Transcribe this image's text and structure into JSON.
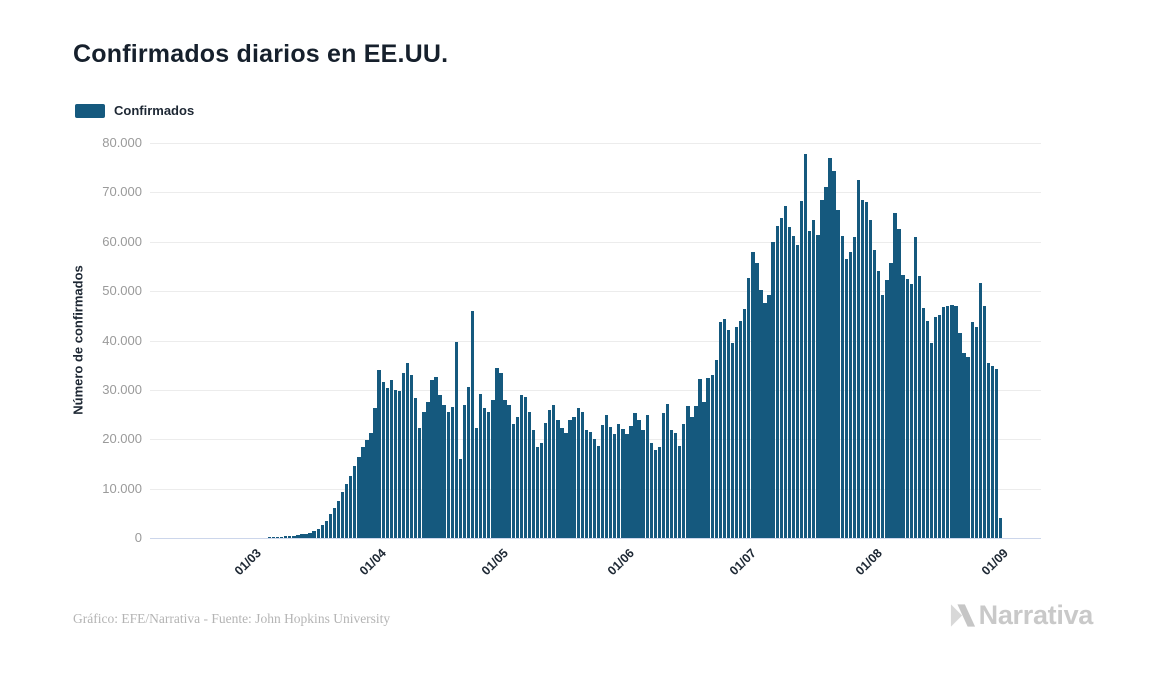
{
  "title": "Confirmados diarios en EE.UU.",
  "legend": {
    "label": "Confirmados",
    "color": "#15597e"
  },
  "y_axis": {
    "title": "Número de confirmados",
    "ticks": [
      "0",
      "10.000",
      "20.000",
      "30.000",
      "40.000",
      "50.000",
      "60.000",
      "70.000",
      "80.000"
    ],
    "tick_values": [
      0,
      10000,
      20000,
      30000,
      40000,
      50000,
      60000,
      70000,
      80000
    ]
  },
  "x_axis": {
    "ticks": [
      "01/03",
      "01/04",
      "01/05",
      "01/06",
      "01/07",
      "01/08",
      "01/09"
    ]
  },
  "footer": {
    "credit": "Gráfico: EFE/Narrativa - Fuente: John Hopkins University",
    "brand": "Narrativa"
  },
  "chart_data": {
    "type": "bar",
    "title": "Confirmados diarios en EE.UU.",
    "xlabel": "",
    "ylabel": "Número de confirmados",
    "ylim": [
      0,
      80000
    ],
    "grid": true,
    "legend_position": "top-left",
    "x_unit": "day",
    "x_start": "2020-02-05",
    "x_end": "2020-09-01",
    "x_tick_labels": [
      "01/03",
      "01/04",
      "01/05",
      "01/06",
      "01/07",
      "01/08",
      "01/09"
    ],
    "x_tick_indices": [
      25,
      56,
      86,
      117,
      147,
      178,
      209
    ],
    "series": [
      {
        "name": "Confirmados",
        "color": "#15597e",
        "values": [
          1,
          0,
          1,
          2,
          2,
          2,
          3,
          2,
          3,
          4,
          3,
          4,
          5,
          4,
          6,
          5,
          8,
          10,
          12,
          14,
          18,
          20,
          22,
          24,
          28,
          35,
          45,
          60,
          80,
          110,
          150,
          200,
          250,
          320,
          400,
          500,
          600,
          750,
          900,
          1100,
          1400,
          1900,
          2600,
          3500,
          4800,
          6100,
          7500,
          9400,
          11000,
          12500,
          14500,
          16500,
          18500,
          19800,
          21300,
          26300,
          34000,
          31500,
          30300,
          32000,
          30000,
          29700,
          33400,
          35400,
          33100,
          28300,
          22300,
          25500,
          27600,
          32000,
          32700,
          29000,
          27000,
          25600,
          26600,
          39700,
          16000,
          27000,
          30500,
          45900,
          22300,
          29200,
          26400,
          25500,
          28000,
          34500,
          33500,
          28000,
          27000,
          23000,
          24600,
          29000,
          28600,
          25600,
          21900,
          18500,
          19300,
          23300,
          26000,
          27000,
          23900,
          22300,
          21300,
          23900,
          24600,
          26400,
          25600,
          21900,
          21500,
          20000,
          18700,
          22900,
          24900,
          22500,
          21000,
          23000,
          22000,
          21000,
          22600,
          25300,
          24000,
          21900,
          25000,
          19200,
          17800,
          18500,
          25300,
          27200,
          21900,
          21200,
          18600,
          23100,
          26700,
          24600,
          26700,
          32300,
          27600,
          32500,
          33000,
          36000,
          43700,
          44400,
          42100,
          39400,
          42700,
          44000,
          46400,
          52700,
          57900,
          55700,
          50300,
          47600,
          49300,
          60000,
          63100,
          64800,
          67200,
          63000,
          61100,
          59300,
          68200,
          77700,
          62100,
          64500,
          61400,
          68500,
          71000,
          77000,
          74300,
          66500,
          61100,
          56500,
          58000,
          61000,
          72600,
          68500,
          68000,
          64500,
          58400,
          54000,
          49300,
          52300,
          55700,
          65900,
          62500,
          53300,
          52400,
          51500,
          60900,
          53000,
          46500,
          44000,
          39500,
          44700,
          45200,
          46800,
          47000,
          47200,
          47000,
          41500,
          37500,
          36700,
          43800,
          42800,
          51700,
          47000,
          35500,
          34900,
          34300,
          4000
        ]
      }
    ]
  }
}
